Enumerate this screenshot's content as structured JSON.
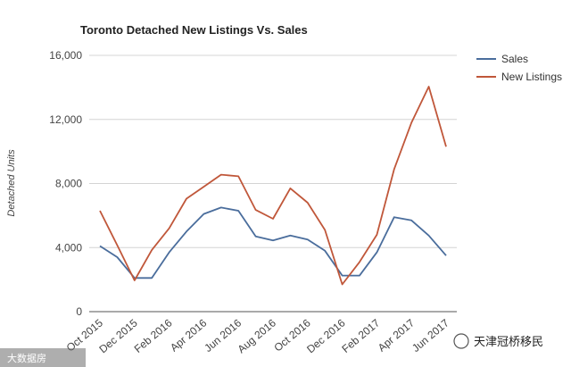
{
  "chart_data": {
    "type": "line",
    "title": "Toronto Detached New Listings Vs. Sales",
    "xlabel": "",
    "ylabel": "Detached Units",
    "ylim": [
      0,
      16000
    ],
    "yticks": [
      "0",
      "4,000",
      "8,000",
      "12,000",
      "16,000"
    ],
    "ytick_values": [
      0,
      4000,
      8000,
      12000,
      16000
    ],
    "categories": [
      "Oct 2015",
      "Nov 2015",
      "Dec 2015",
      "Jan 2016",
      "Feb 2016",
      "Mar 2016",
      "Apr 2016",
      "May 2016",
      "Jun 2016",
      "Jul 2016",
      "Aug 2016",
      "Sep 2016",
      "Oct 2016",
      "Nov 2016",
      "Dec 2016",
      "Jan 2017",
      "Feb 2017",
      "Mar 2017",
      "Apr 2017",
      "May 2017",
      "Jun 2017"
    ],
    "xtick_labels": [
      "Oct 2015",
      "Dec 2015",
      "Feb 2016",
      "Apr 2016",
      "Jun 2016",
      "Aug 2016",
      "Oct 2016",
      "Dec 2016",
      "Feb 2017",
      "Apr 2017",
      "Jun 2017"
    ],
    "series": [
      {
        "name": "Sales",
        "color": "#4a6d9c",
        "values": [
          4100,
          3400,
          2100,
          2100,
          3700,
          5000,
          6100,
          6500,
          6300,
          4700,
          4450,
          4750,
          4500,
          3800,
          2250,
          2250,
          3700,
          5900,
          5700,
          4750,
          3500
        ]
      },
      {
        "name": "New Listings",
        "color": "#c0573a",
        "values": [
          6300,
          4150,
          1950,
          3850,
          5200,
          7050,
          7800,
          8550,
          8450,
          6350,
          5800,
          7700,
          6800,
          5100,
          1700,
          3100,
          4800,
          8900,
          11800,
          14050,
          10300
        ]
      }
    ],
    "legend_position": "top-right",
    "grid": true
  },
  "watermarks": {
    "left": "大数据房",
    "right": "天津冠桥移民"
  }
}
